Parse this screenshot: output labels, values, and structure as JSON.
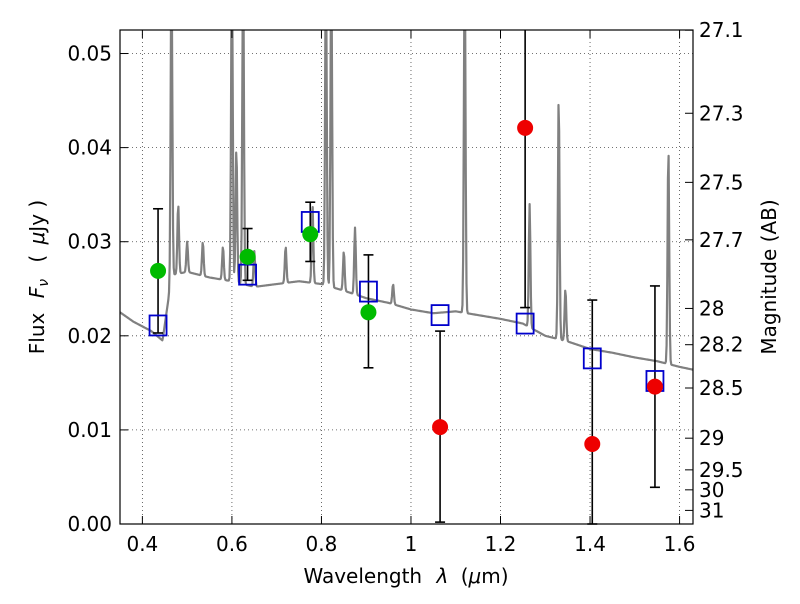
{
  "chart_data": {
    "type": "scatter",
    "title": "",
    "xlabel_text": "Wavelength",
    "xlabel_symbol": "λ",
    "xlabel_unit_open": "(",
    "xlabel_unit_mu": "μ",
    "xlabel_unit_rest": "m)",
    "ylabel_text": "Flux",
    "ylabel_symbol": "F",
    "ylabel_symbol_sub": "ν",
    "ylabel_unit_open": "(",
    "ylabel_unit_mu": "μ",
    "ylabel_unit_rest": "Jy )",
    "y2label": "Magnitude (AB)",
    "xlim": [
      0.35,
      1.63
    ],
    "ylim": [
      0.0,
      0.0525
    ],
    "grid": true,
    "x_ticks": [
      0.4,
      0.6,
      0.8,
      1.0,
      1.2,
      1.4,
      1.6
    ],
    "x_tick_labels": [
      "0.4",
      "0.6",
      "0.8",
      "1",
      "1.2",
      "1.4",
      "1.6"
    ],
    "y_ticks": [
      0.0,
      0.01,
      0.02,
      0.03,
      0.04,
      0.05
    ],
    "y_tick_labels": [
      "0.00",
      "0.01",
      "0.02",
      "0.03",
      "0.04",
      "0.05"
    ],
    "y2_tick_labels": [
      "27.1",
      "27.3",
      "27.5",
      "27.7",
      "28",
      "28.2",
      "28.5",
      "29",
      "29.5",
      "30",
      "31"
    ],
    "colors": {
      "model": "#808080",
      "model_points": "#0000cc",
      "detections": "#00bb00",
      "upper_limits": "#ee0000",
      "errorbar": "#000000",
      "grid": "#444444"
    },
    "series": [
      {
        "kind": "detections",
        "x": [
          0.435,
          0.635,
          0.775,
          0.905
        ],
        "y": [
          0.0269,
          0.0284,
          0.0308,
          0.0225
        ],
        "yerr_low": [
          0.0066,
          0.0025,
          0.0029,
          0.0059
        ],
        "yerr_high": [
          0.0066,
          0.003,
          0.0034,
          0.0061
        ]
      },
      {
        "kind": "upper_limits",
        "x": [
          1.065,
          1.255,
          1.405,
          1.545
        ],
        "y": [
          0.0103,
          0.0421,
          0.0085,
          0.0146
        ],
        "yerr_low": [
          0.0101,
          0.0191,
          0.0085,
          0.0107
        ],
        "yerr_high": [
          0.0102,
          0.0104,
          0.0153,
          0.0107
        ]
      },
      {
        "kind": "model_points",
        "x": [
          0.435,
          0.635,
          0.775,
          0.905,
          1.065,
          1.255,
          1.405,
          1.545
        ],
        "y": [
          0.0211,
          0.0265,
          0.0321,
          0.0247,
          0.0222,
          0.0213,
          0.0176,
          0.0152
        ]
      },
      {
        "kind": "model_spectrum",
        "continuum_x": [
          0.35,
          0.38,
          0.42,
          0.445,
          0.46,
          0.47,
          0.5,
          0.55,
          0.6,
          0.65,
          0.7,
          0.75,
          0.8,
          0.85,
          0.9,
          0.95,
          1.0,
          1.05,
          1.1,
          1.15,
          1.2,
          1.25,
          1.3,
          1.35,
          1.4,
          1.45,
          1.5,
          1.55,
          1.6,
          1.63
        ],
        "continuum_y": [
          0.0225,
          0.0215,
          0.0205,
          0.0195,
          0.0245,
          0.0265,
          0.0268,
          0.0262,
          0.0258,
          0.0252,
          0.0255,
          0.0258,
          0.0255,
          0.0248,
          0.024,
          0.0235,
          0.0228,
          0.0224,
          0.0226,
          0.0222,
          0.0218,
          0.0213,
          0.02,
          0.0194,
          0.0186,
          0.0182,
          0.0177,
          0.0173,
          0.0167,
          0.0164
        ],
        "emission_lines": [
          {
            "x": 0.465,
            "peak": 0.06
          },
          {
            "x": 0.48,
            "peak": 0.034
          },
          {
            "x": 0.5,
            "peak": 0.03
          },
          {
            "x": 0.535,
            "peak": 0.03
          },
          {
            "x": 0.58,
            "peak": 0.0295
          },
          {
            "x": 0.6,
            "peak": 0.06
          },
          {
            "x": 0.61,
            "peak": 0.04
          },
          {
            "x": 0.625,
            "peak": 0.06
          },
          {
            "x": 0.65,
            "peak": 0.029
          },
          {
            "x": 0.72,
            "peak": 0.0295
          },
          {
            "x": 0.78,
            "peak": 0.034
          },
          {
            "x": 0.81,
            "peak": 0.06
          },
          {
            "x": 0.822,
            "peak": 0.06
          },
          {
            "x": 0.85,
            "peak": 0.029
          },
          {
            "x": 0.875,
            "peak": 0.0315
          },
          {
            "x": 0.96,
            "peak": 0.0255
          },
          {
            "x": 1.12,
            "peak": 0.06
          },
          {
            "x": 1.265,
            "peak": 0.034
          },
          {
            "x": 1.33,
            "peak": 0.0455
          },
          {
            "x": 1.345,
            "peak": 0.025
          },
          {
            "x": 1.575,
            "peak": 0.04
          }
        ]
      }
    ]
  }
}
